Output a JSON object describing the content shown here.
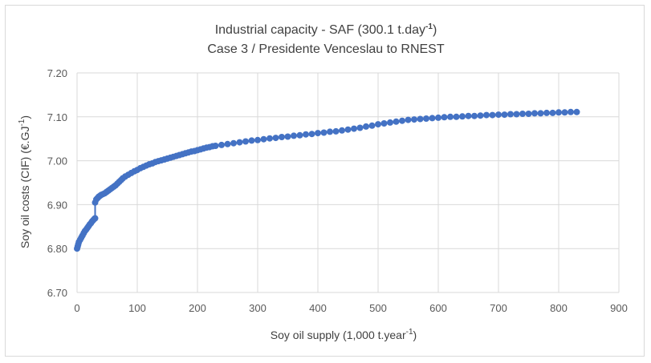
{
  "chart_data": {
    "type": "scatter",
    "title_line1_main": "Industrial capacity - SAF (300.1 t.day",
    "title_line1_sup": "-1",
    "title_line1_end": ")",
    "title_line2": "Case 3 / Presidente Venceslau to RNEST",
    "xlabel_main": "Soy oil supply (1,000 t.year",
    "xlabel_sup": "-1",
    "xlabel_end": ")",
    "ylabel_main": "Soy oil costs (CIF) (€.GJ",
    "ylabel_sup": "-1",
    "ylabel_end": ")",
    "xlim": [
      0,
      900
    ],
    "ylim": [
      6.7,
      7.2
    ],
    "x_ticks": [
      0,
      100,
      200,
      300,
      400,
      500,
      600,
      700,
      800,
      900
    ],
    "y_ticks": [
      "6.70",
      "6.80",
      "6.90",
      "7.00",
      "7.10",
      "7.20"
    ],
    "grid": true,
    "marker_color": "#4472C4",
    "series": [
      {
        "x": [
          0,
          1,
          2,
          3,
          5,
          7,
          9,
          11,
          13,
          15,
          17,
          19,
          21,
          23,
          25,
          27,
          29,
          30,
          30,
          32,
          34,
          36,
          38,
          40,
          43,
          46,
          49,
          52,
          55,
          58,
          61,
          64,
          67,
          70,
          73,
          76,
          80,
          85,
          90,
          95,
          100,
          105,
          110,
          115,
          120,
          125,
          130,
          135,
          140,
          145,
          150,
          155,
          160,
          165,
          170,
          175,
          180,
          185,
          190,
          195,
          200,
          205,
          210,
          215,
          220,
          225,
          230,
          240,
          250,
          260,
          270,
          280,
          290,
          300,
          310,
          320,
          330,
          340,
          350,
          360,
          370,
          380,
          390,
          400,
          410,
          420,
          430,
          440,
          450,
          460,
          470,
          480,
          490,
          500,
          510,
          520,
          530,
          540,
          550,
          560,
          570,
          580,
          590,
          600,
          610,
          620,
          630,
          640,
          650,
          660,
          670,
          680,
          690,
          700,
          710,
          720,
          730,
          740,
          750,
          760,
          770,
          780,
          790,
          800,
          810,
          820,
          830
        ],
        "y": [
          6.8,
          6.805,
          6.81,
          6.815,
          6.82,
          6.825,
          6.83,
          6.835,
          6.84,
          6.843,
          6.847,
          6.851,
          6.855,
          6.858,
          6.862,
          6.865,
          6.868,
          6.869,
          6.905,
          6.912,
          6.915,
          6.918,
          6.92,
          6.922,
          6.924,
          6.926,
          6.929,
          6.932,
          6.935,
          6.938,
          6.941,
          6.944,
          6.948,
          6.952,
          6.956,
          6.96,
          6.964,
          6.968,
          6.972,
          6.976,
          6.979,
          6.983,
          6.986,
          6.989,
          6.992,
          6.994,
          6.997,
          6.999,
          7.001,
          7.003,
          7.005,
          7.007,
          7.009,
          7.011,
          7.013,
          7.015,
          7.017,
          7.019,
          7.021,
          7.022,
          7.024,
          7.026,
          7.028,
          7.03,
          7.031,
          7.033,
          7.034,
          7.036,
          7.038,
          7.04,
          7.042,
          7.044,
          7.046,
          7.047,
          7.049,
          7.051,
          7.052,
          7.054,
          7.055,
          7.057,
          7.058,
          7.06,
          7.061,
          7.063,
          7.064,
          7.066,
          7.067,
          7.069,
          7.071,
          7.073,
          7.075,
          7.078,
          7.08,
          7.083,
          7.085,
          7.087,
          7.089,
          7.091,
          7.093,
          7.094,
          7.095,
          7.096,
          7.097,
          7.098,
          7.099,
          7.1,
          7.1,
          7.101,
          7.102,
          7.102,
          7.103,
          7.104,
          7.104,
          7.105,
          7.105,
          7.106,
          7.106,
          7.107,
          7.107,
          7.108,
          7.108,
          7.109,
          7.109,
          7.11,
          7.11,
          7.111,
          7.111
        ]
      }
    ]
  }
}
